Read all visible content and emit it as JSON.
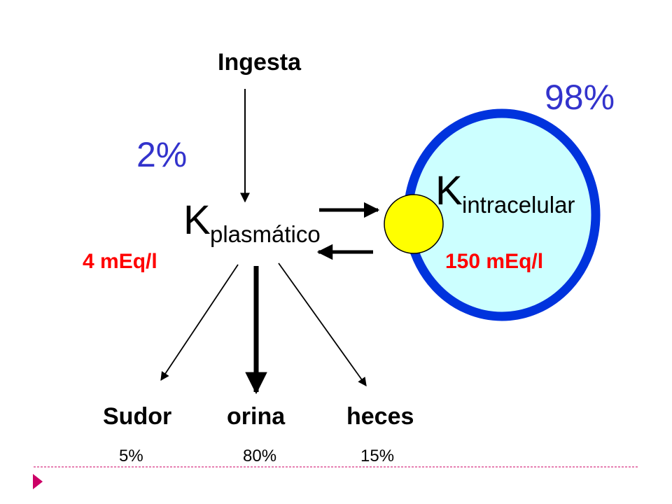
{
  "intake": {
    "label": "Ingesta"
  },
  "plasma": {
    "percent": "2%",
    "symbol": "K",
    "subscript": "plasmático",
    "concentration": "4 mEq/l"
  },
  "intracellular": {
    "percent": "98%",
    "symbol": "K",
    "subscript": "intracelular",
    "concentration": "150 mEq/l"
  },
  "outputs": [
    {
      "label": "Sudor",
      "percent": "5%"
    },
    {
      "label": "orina",
      "percent": "80%"
    },
    {
      "label": "heces",
      "percent": "15%"
    }
  ],
  "colors": {
    "percent_blue": "#3333cc",
    "concentration_red": "#ff0000",
    "cell_border": "#0033dd",
    "cell_fill": "#ccffff",
    "pump_fill": "#ffff00",
    "accent_pink": "#cc0066"
  }
}
